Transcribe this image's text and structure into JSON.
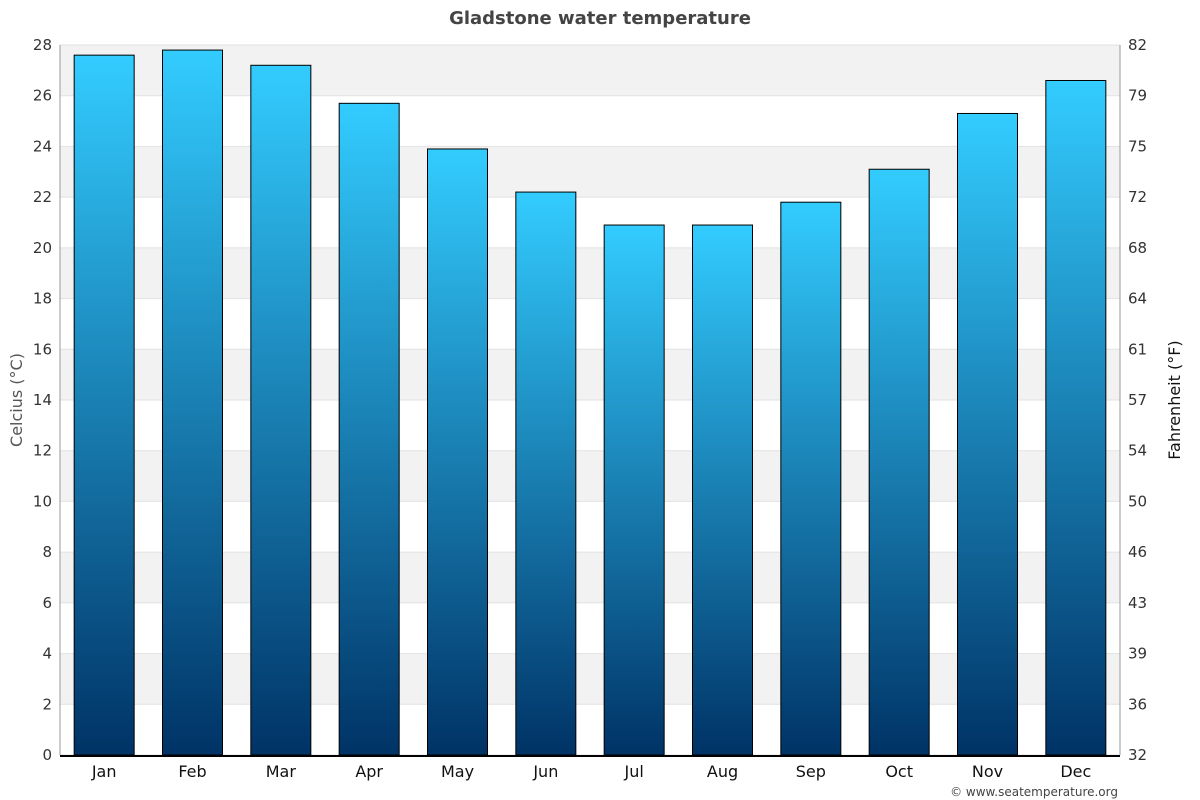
{
  "chart_data": {
    "type": "bar",
    "title": "Gladstone water temperature",
    "ylabel": "Celcius (°C)",
    "y2label": "Fahrenheit (°F)",
    "categories": [
      "Jan",
      "Feb",
      "Mar",
      "Apr",
      "May",
      "Jun",
      "Jul",
      "Aug",
      "Sep",
      "Oct",
      "Nov",
      "Dec"
    ],
    "values": [
      27.6,
      27.8,
      27.2,
      25.7,
      23.9,
      22.2,
      20.9,
      20.9,
      21.8,
      23.1,
      25.3,
      26.6
    ],
    "ylim": [
      0,
      28
    ],
    "yticks": [
      0,
      2,
      4,
      6,
      8,
      10,
      12,
      14,
      16,
      18,
      20,
      22,
      24,
      26,
      28
    ],
    "y2ticks": [
      "32",
      "36",
      "39",
      "43",
      "46",
      "50",
      "54",
      "57",
      "61",
      "64",
      "68",
      "72",
      "75",
      "79",
      "82"
    ],
    "grid": true,
    "legend": "none",
    "colors": {
      "bar_top": "#33ccff",
      "bar_bottom": "#003366",
      "band": "#f2f2f2",
      "title": "#444444"
    }
  },
  "credit": "© www.seatemperature.org"
}
